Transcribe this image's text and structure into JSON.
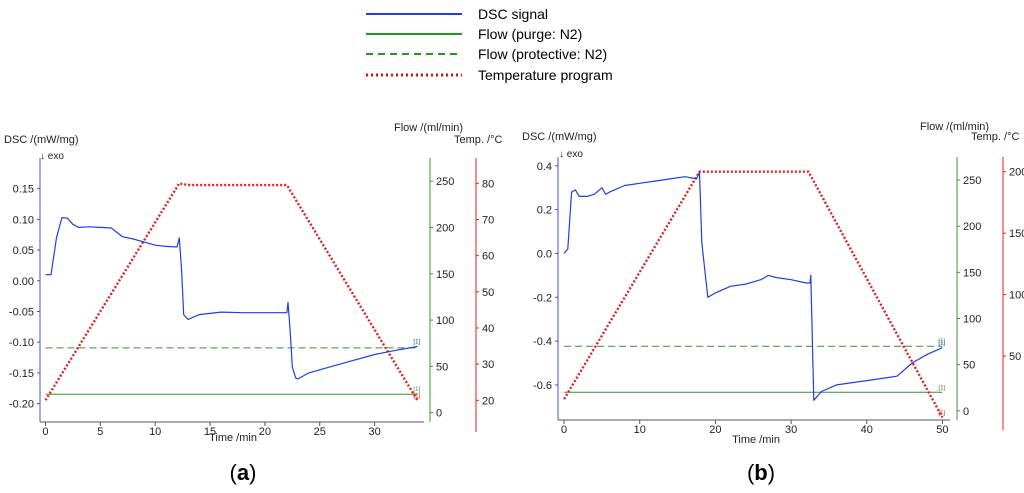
{
  "legend": [
    {
      "label": "DSC signal",
      "color": "#1f3fe0",
      "dash": "solid"
    },
    {
      "label": "Flow (purge: N2)",
      "color": "#1a9a1a",
      "dash": "solid"
    },
    {
      "label": "Flow (protective: N2)",
      "color": "#1a9a1a",
      "dash": "dashed"
    },
    {
      "label": "Temperature program",
      "color": "#e01010",
      "dash": "dotted"
    }
  ],
  "colors": {
    "dsc": "#1f3fe0",
    "flow": "#3a8a3a",
    "flow_axis": "#3a9a3a",
    "temp": "#e02020",
    "axis": "#333333"
  },
  "chart_data": [
    {
      "panel": "a",
      "panel_label": "a",
      "type": "line",
      "xlabel": "Time /min",
      "ylabel_left": "DSC /(mW/mg)",
      "exo_label": "↓ exo",
      "ylabel_flow": "Flow /(ml/min)",
      "ylabel_temp": "Temp. /°C",
      "xlim": [
        -0.5,
        34.5
      ],
      "xticks": [
        0,
        5,
        10,
        15,
        20,
        25,
        30
      ],
      "ylim_dsc": [
        -0.23,
        0.2
      ],
      "yticks_dsc": [
        "0.15",
        "0.10",
        "0.05",
        "0.00",
        "-0.05",
        "-0.10",
        "-0.15",
        "-0.20"
      ],
      "ylim_flow": [
        -10,
        275
      ],
      "yticks_flow": [
        0,
        50,
        100,
        150,
        200,
        250
      ],
      "ylim_temp": [
        14,
        87
      ],
      "yticks_temp": [
        20,
        30,
        40,
        50,
        60,
        70,
        80
      ],
      "dsc_signal": {
        "x": [
          0,
          0.5,
          1,
          1.5,
          2,
          2.5,
          3,
          4,
          5,
          6,
          7,
          8,
          9,
          10,
          11,
          12,
          12.2,
          12.4,
          12.6,
          13,
          14,
          16,
          18,
          20,
          21,
          22,
          22.1,
          22.3,
          22.5,
          22.8,
          23,
          24,
          26,
          28,
          30,
          32,
          33.9
        ],
        "y": [
          0.01,
          0.01,
          0.07,
          0.103,
          0.102,
          0.092,
          0.087,
          0.088,
          0.087,
          0.086,
          0.072,
          0.068,
          0.063,
          0.058,
          0.056,
          0.055,
          0.07,
          0.02,
          -0.055,
          -0.063,
          -0.055,
          -0.051,
          -0.052,
          -0.052,
          -0.052,
          -0.052,
          -0.035,
          -0.08,
          -0.14,
          -0.158,
          -0.16,
          -0.15,
          -0.14,
          -0.13,
          -0.12,
          -0.113,
          -0.107
        ]
      },
      "flow_protective": {
        "x": [
          0,
          33.9
        ],
        "y": [
          70,
          70
        ]
      },
      "flow_purge": {
        "x": [
          0,
          33.9
        ],
        "y": [
          20,
          20
        ]
      },
      "temperature_program": {
        "x": [
          0,
          12.2,
          13,
          22,
          33.9
        ],
        "y": [
          20,
          80,
          79.5,
          79.5,
          20
        ]
      },
      "end_markers": [
        {
          "label": "[1]",
          "series": "dsc",
          "x": 33.9,
          "y": -0.107
        },
        {
          "label": "[1]",
          "series": "flow",
          "x": 33.9,
          "y": 20
        },
        {
          "label": "[1]",
          "series": "temp",
          "x": 33.9,
          "y": 20
        }
      ]
    },
    {
      "panel": "b",
      "panel_label": "b",
      "type": "line",
      "xlabel": "Time /min",
      "ylabel_left": "DSC /(mW/mg)",
      "exo_label": "↓ exo",
      "ylabel_flow": "Flow /(ml/min)",
      "ylabel_temp": "Temp. /°C",
      "xlim": [
        -0.8,
        51
      ],
      "xticks": [
        0,
        10,
        20,
        30,
        40,
        50
      ],
      "ylim_dsc": [
        -0.76,
        0.44
      ],
      "yticks_dsc": [
        "0.4",
        "0.2",
        "0.0",
        "-0.2",
        "-0.4",
        "-0.6"
      ],
      "ylim_flow": [
        -10,
        275
      ],
      "yticks_flow": [
        0,
        50,
        100,
        150,
        200,
        250
      ],
      "ylim_temp": [
        -2,
        212
      ],
      "yticks_temp": [
        50,
        100,
        150,
        200
      ],
      "dsc_signal": {
        "x": [
          0,
          0.5,
          1,
          1.5,
          2,
          3,
          4,
          5,
          5.5,
          6,
          8,
          10,
          12,
          14,
          16,
          17.5,
          17.9,
          18.2,
          19,
          20,
          22,
          24,
          26,
          27,
          28,
          30,
          32,
          32.5,
          32.6,
          33,
          34,
          36,
          40,
          44,
          46,
          48,
          50
        ],
        "y": [
          0,
          0.02,
          0.28,
          0.29,
          0.26,
          0.26,
          0.27,
          0.3,
          0.27,
          0.28,
          0.31,
          0.32,
          0.33,
          0.34,
          0.35,
          0.34,
          0.37,
          0.05,
          -0.2,
          -0.18,
          -0.15,
          -0.14,
          -0.12,
          -0.1,
          -0.11,
          -0.12,
          -0.135,
          -0.135,
          -0.1,
          -0.67,
          -0.63,
          -0.6,
          -0.58,
          -0.56,
          -0.5,
          -0.46,
          -0.43
        ]
      },
      "flow_protective": {
        "x": [
          0,
          50
        ],
        "y": [
          70,
          70
        ]
      },
      "flow_purge": {
        "x": [
          0,
          50
        ],
        "y": [
          20,
          20
        ]
      },
      "temperature_program": {
        "x": [
          0,
          17.9,
          32.3,
          50
        ],
        "y": [
          15,
          200,
          200,
          0
        ]
      },
      "end_markers": [
        {
          "label": "[1]",
          "series": "dsc",
          "x": 50,
          "y": -0.43
        },
        {
          "label": "[1]",
          "series": "flow",
          "x": 50,
          "y": 70
        },
        {
          "label": "[1]",
          "series": "flow",
          "x": 50,
          "y": 20
        },
        {
          "label": "[1]",
          "series": "temp",
          "x": 50,
          "y": 0
        }
      ]
    }
  ]
}
